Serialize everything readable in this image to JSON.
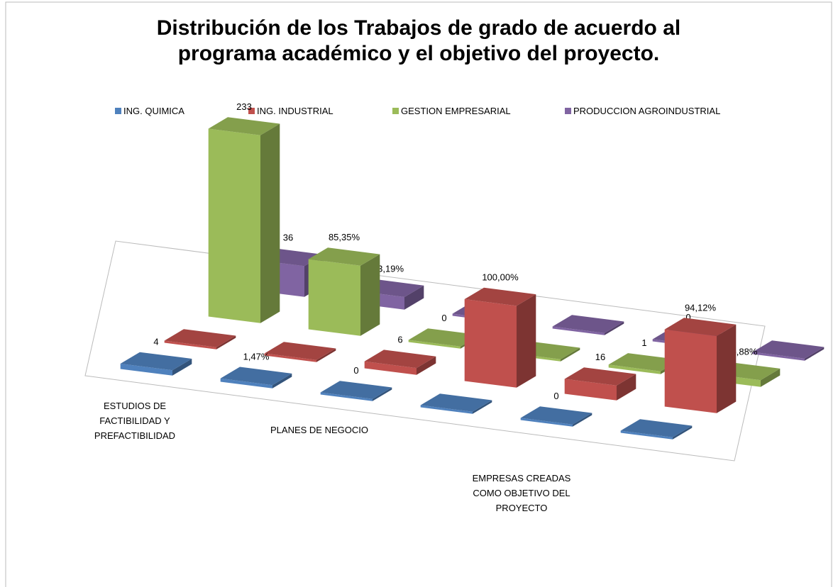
{
  "chart_data": {
    "type": "bar3d",
    "title": "Distribución de los Trabajos de grado de acuerdo al programa académico y el objetivo del proyecto.",
    "categories": [
      "ESTUDIOS DE FACTIBILIDAD Y PREFACTIBILIDAD",
      null,
      "PLANES DE NEGOCIO",
      null,
      "EMPRESAS CREADAS COMO OBJETIVO DEL PROYECTO",
      null
    ],
    "legend": "top",
    "series": [
      {
        "name": "ING. QUIMICA",
        "color": "#4f81bd",
        "values": [
          4,
          1.47,
          0,
          0,
          0,
          0
        ],
        "value_labels": [
          "4",
          "1,47%",
          "0",
          null,
          "0",
          null
        ]
      },
      {
        "name": "ING. INDUSTRIAL",
        "color": "#c0504d",
        "values": [
          0,
          0,
          6,
          100,
          16,
          94.12
        ],
        "value_labels": [
          null,
          null,
          "6",
          "100,00%",
          "16",
          "94,12%"
        ]
      },
      {
        "name": "GESTION EMPRESARIAL",
        "color": "#9bbb59",
        "values": [
          233,
          85.35,
          0,
          0,
          1,
          5.88
        ],
        "value_labels": [
          "233",
          "85,35%",
          "0",
          null,
          "1",
          "5,88%"
        ]
      },
      {
        "name": "PRODUCCION AGROINDUSTRIAL",
        "color": "#8064a2",
        "values": [
          36,
          13.19,
          0,
          0,
          0,
          0
        ],
        "value_labels": [
          "36",
          "13,19%",
          "0",
          null,
          "0",
          null
        ]
      }
    ]
  }
}
